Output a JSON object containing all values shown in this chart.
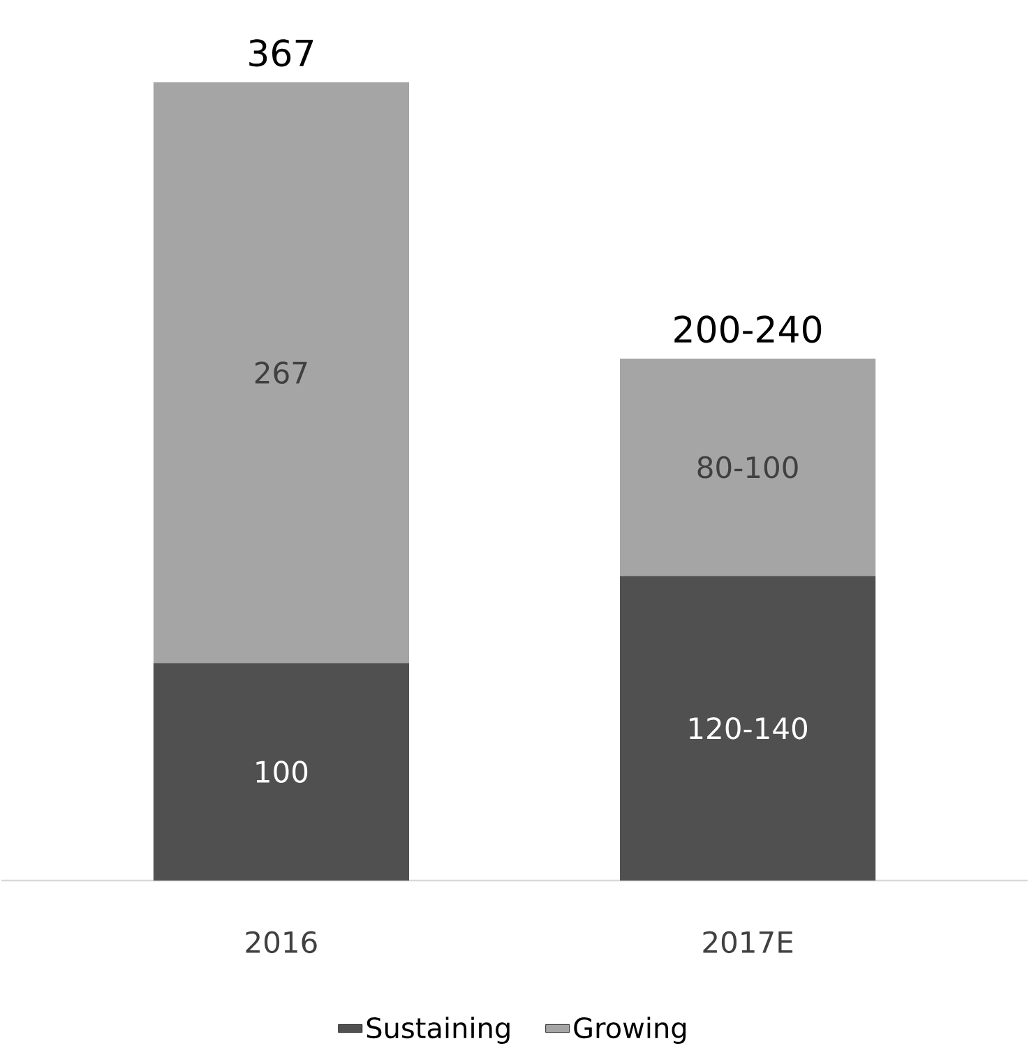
{
  "chart_data": {
    "type": "bar",
    "stacked": true,
    "categories": [
      "2016",
      "2017E"
    ],
    "series": [
      {
        "name": "Sustaining",
        "color": "#505050",
        "values": [
          100,
          140
        ],
        "value_labels": [
          "100",
          "120-140"
        ]
      },
      {
        "name": "Growing",
        "color": "#a5a5a5",
        "values": [
          267,
          100
        ],
        "value_labels": [
          "267",
          "80-100"
        ]
      }
    ],
    "totals": [
      "367",
      "200-240"
    ],
    "legend": "bottom"
  }
}
